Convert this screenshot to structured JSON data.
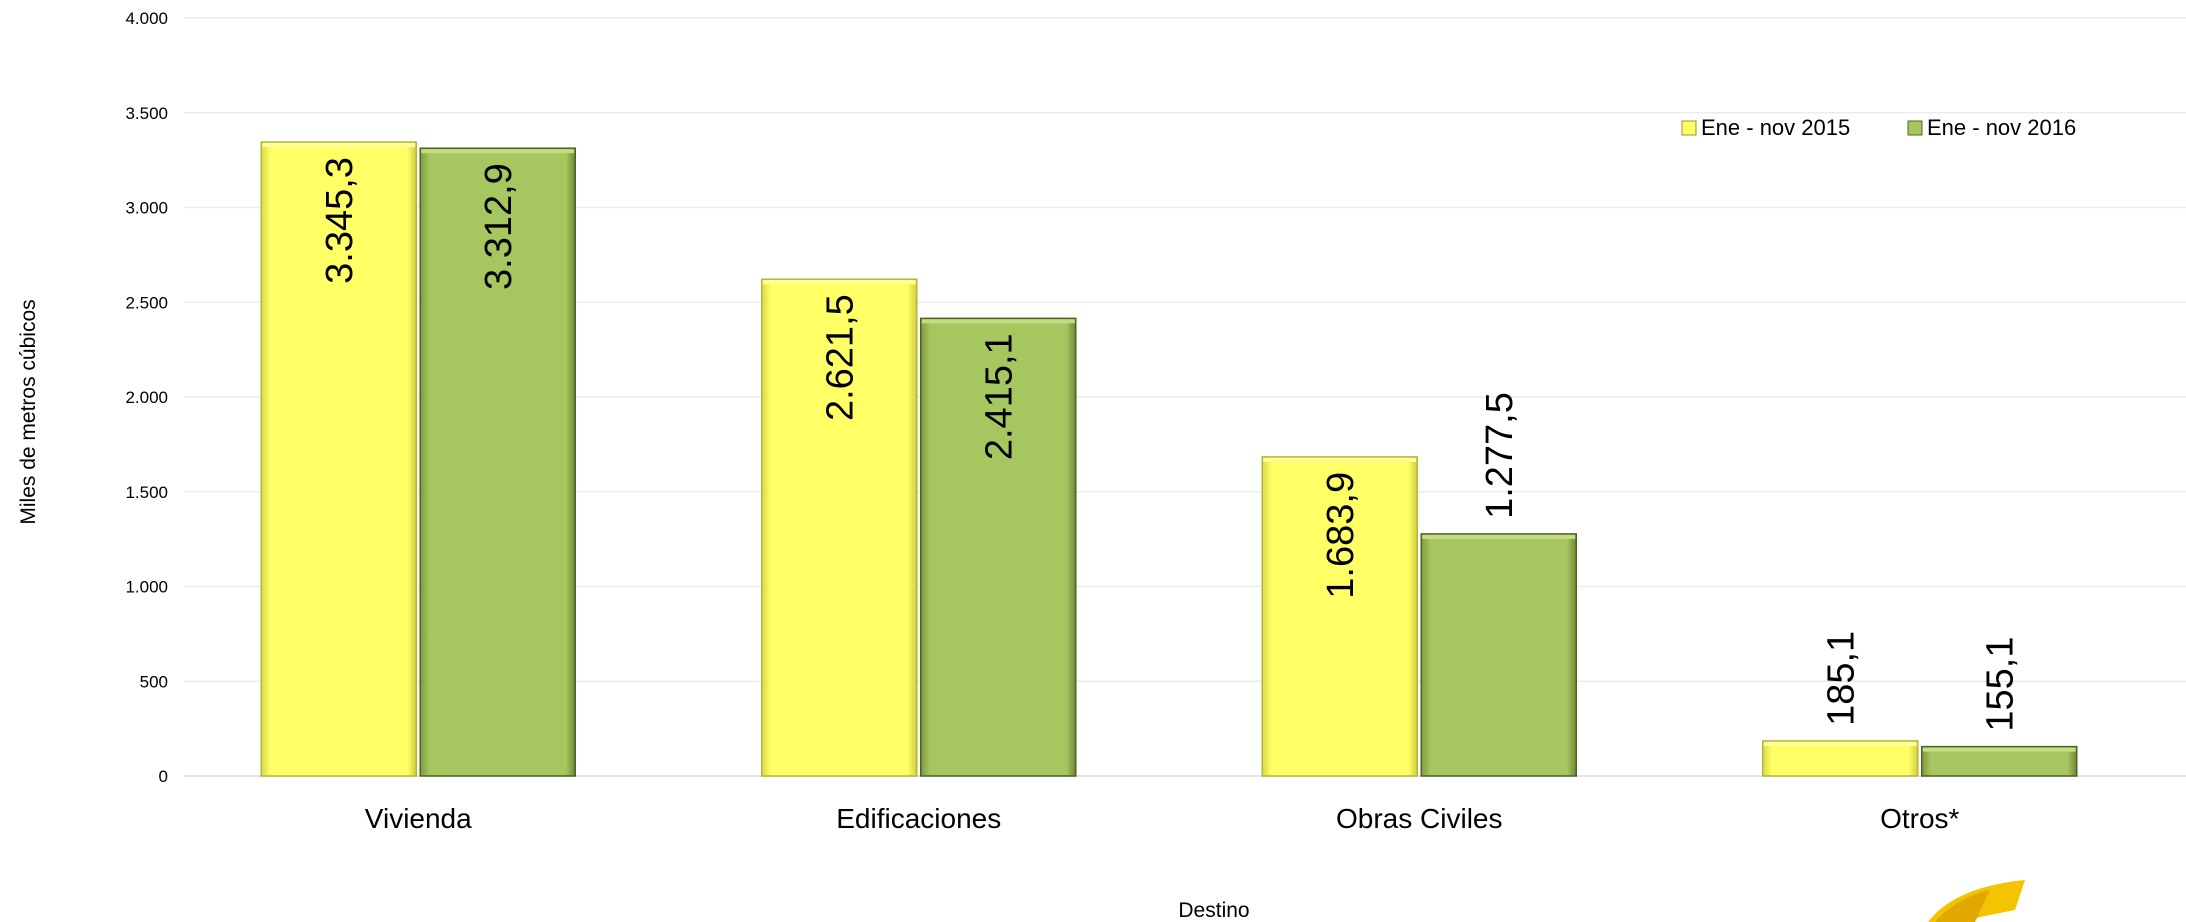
{
  "chart_data": {
    "type": "bar",
    "title": "",
    "xlabel": "Destino",
    "ylabel": "Miles de metros cúbicos",
    "ylim": [
      0,
      4000
    ],
    "yticks": [
      0,
      500,
      1000,
      1500,
      2000,
      2500,
      3000,
      3500,
      4000
    ],
    "ytick_labels": [
      "0",
      "500",
      "1.000",
      "1.500",
      "2.000",
      "2.500",
      "3.000",
      "3.500",
      "4.000"
    ],
    "categories": [
      "Vivienda",
      "Edificaciones",
      "Obras Civiles",
      "Otros*"
    ],
    "series": [
      {
        "name": "Ene - nov 2015",
        "color": "#ffff66",
        "values": [
          3345.3,
          2621.5,
          1683.9,
          185.1
        ],
        "labels": [
          "3.345,3",
          "2.621,5",
          "1.683,9",
          "185,1"
        ]
      },
      {
        "name": "Ene - nov 2016",
        "color": "#a6c660",
        "values": [
          3312.9,
          2415.1,
          1277.5,
          155.1
        ],
        "labels": [
          "3.312,9",
          "2.415,1",
          "1.277,5",
          "155,1"
        ]
      }
    ],
    "grid": true,
    "legend_position": "top-right"
  },
  "logo": {
    "name": "logo-swoosh-icon",
    "color": "#f5c400"
  }
}
